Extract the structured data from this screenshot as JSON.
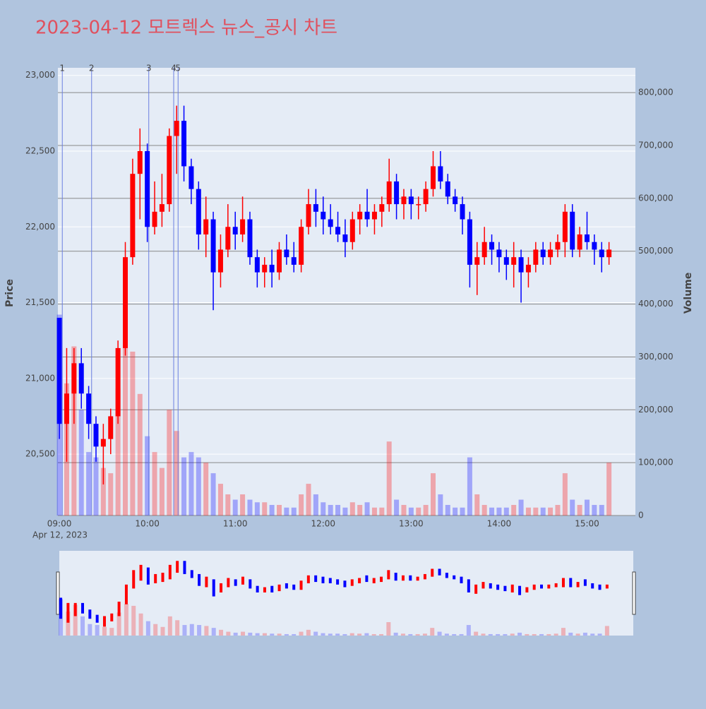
{
  "chart_data": {
    "type": "candlestick",
    "title": "2023-04-12 모트렉스 뉴스_공시 차트",
    "x_label": "Apr 12, 2023",
    "y_label": "Price",
    "y2_label": "Volume",
    "up_color": "#ff0000",
    "down_color": "#0000ff",
    "xlim": [
      "08:59",
      "15:33"
    ],
    "xticks": [
      "09:00",
      "10:00",
      "11:00",
      "12:00",
      "13:00",
      "14:00",
      "15:00"
    ],
    "ylim": [
      20095,
      23050
    ],
    "yticks": [
      {
        "value": 20500,
        "label": "20,500"
      },
      {
        "value": 21000,
        "label": "21,000"
      },
      {
        "value": 21500,
        "label": "21,500"
      },
      {
        "value": 22000,
        "label": "22,000"
      },
      {
        "value": 22500,
        "label": "22,500"
      },
      {
        "value": 23000,
        "label": "23,000"
      }
    ],
    "y2lim": [
      0,
      847000
    ],
    "y2ticks": [
      0,
      {
        "value": 100000,
        "label": "100,000"
      },
      {
        "value": 200000,
        "label": "200,000"
      },
      {
        "value": 300000,
        "label": "300,000"
      },
      {
        "value": 400000,
        "label": "400,000"
      },
      {
        "value": 500000,
        "label": "500,000"
      },
      {
        "value": 600000,
        "label": "600,000"
      },
      {
        "value": 700000,
        "label": "700,000"
      },
      {
        "value": 800000,
        "label": "800,000"
      }
    ],
    "markers": [
      {
        "label": "1",
        "x": "09:02"
      },
      {
        "label": "2",
        "x": "09:22"
      },
      {
        "label": "3",
        "x": "10:01"
      },
      {
        "label": "4",
        "x": "10:18"
      },
      {
        "label": "5",
        "x": "10:21"
      }
    ],
    "x": [
      "09:00",
      "09:05",
      "09:10",
      "09:15",
      "09:20",
      "09:25",
      "09:30",
      "09:35",
      "09:40",
      "09:45",
      "09:50",
      "09:55",
      "10:00",
      "10:05",
      "10:10",
      "10:15",
      "10:20",
      "10:25",
      "10:30",
      "10:35",
      "10:40",
      "10:45",
      "10:50",
      "10:55",
      "11:00",
      "11:05",
      "11:10",
      "11:15",
      "11:20",
      "11:25",
      "11:30",
      "11:35",
      "11:40",
      "11:45",
      "11:50",
      "11:55",
      "12:00",
      "12:05",
      "12:10",
      "12:15",
      "12:20",
      "12:25",
      "12:30",
      "12:35",
      "12:40",
      "12:45",
      "12:50",
      "12:55",
      "13:00",
      "13:05",
      "13:10",
      "13:15",
      "13:20",
      "13:25",
      "13:30",
      "13:35",
      "13:40",
      "13:45",
      "13:50",
      "13:55",
      "14:00",
      "14:05",
      "14:10",
      "14:15",
      "14:20",
      "14:25",
      "14:30",
      "14:35",
      "14:40",
      "14:45",
      "14:50",
      "14:55",
      "15:00",
      "15:05",
      "15:10",
      "15:15"
    ],
    "open": [
      21400,
      20700,
      20900,
      21100,
      20900,
      20700,
      20550,
      20600,
      20750,
      21200,
      21800,
      22350,
      22500,
      22000,
      22100,
      22150,
      22600,
      22700,
      22400,
      22250,
      21950,
      22050,
      21700,
      21850,
      22000,
      21950,
      22050,
      21800,
      21700,
      21750,
      21700,
      21850,
      21800,
      21750,
      22000,
      22150,
      22100,
      22050,
      22000,
      21950,
      21900,
      22050,
      22100,
      22050,
      22100,
      22150,
      22300,
      22150,
      22200,
      22150,
      22150,
      22250,
      22400,
      22300,
      22200,
      22150,
      22050,
      21750,
      21800,
      21900,
      21850,
      21800,
      21750,
      21800,
      21700,
      21750,
      21850,
      21800,
      21850,
      21900,
      22100,
      21850,
      21950,
      21900,
      21850,
      21800
    ],
    "high": [
      21400,
      21200,
      21200,
      21200,
      20950,
      20750,
      20700,
      20800,
      21250,
      21900,
      22450,
      22650,
      22550,
      22300,
      22350,
      22650,
      22800,
      22800,
      22450,
      22300,
      22200,
      22100,
      21950,
      22150,
      22100,
      22200,
      22100,
      21850,
      21800,
      21850,
      21900,
      21950,
      21900,
      22050,
      22250,
      22250,
      22200,
      22150,
      22100,
      22050,
      22100,
      22150,
      22250,
      22150,
      22200,
      22450,
      22350,
      22250,
      22250,
      22200,
      22300,
      22500,
      22500,
      22350,
      22250,
      22200,
      22100,
      21900,
      22000,
      21950,
      21900,
      21850,
      21900,
      21850,
      21800,
      21900,
      21900,
      21900,
      21950,
      22150,
      22150,
      22000,
      22100,
      21950,
      21900,
      21900
    ],
    "low": [
      20600,
      20450,
      20700,
      20800,
      20600,
      20450,
      20300,
      20500,
      20700,
      21150,
      21750,
      22050,
      21900,
      21950,
      22000,
      22100,
      22350,
      22300,
      22150,
      21850,
      21800,
      21450,
      21600,
      21800,
      21850,
      21900,
      21750,
      21600,
      21600,
      21600,
      21650,
      21750,
      21700,
      21700,
      21950,
      22000,
      21950,
      21950,
      21900,
      21800,
      21850,
      21950,
      22000,
      21950,
      22000,
      22100,
      22050,
      22050,
      22050,
      22050,
      22100,
      22200,
      22250,
      22150,
      22100,
      21950,
      21600,
      21550,
      21750,
      21750,
      21700,
      21650,
      21600,
      21500,
      21600,
      21700,
      21750,
      21750,
      21800,
      21800,
      21800,
      21800,
      21850,
      21750,
      21700,
      21750
    ],
    "close": [
      20700,
      20900,
      21100,
      20900,
      20700,
      20550,
      20600,
      20750,
      21200,
      21800,
      22350,
      22500,
      22000,
      22100,
      22150,
      22600,
      22700,
      22400,
      22250,
      21950,
      22050,
      21700,
      21850,
      22000,
      21950,
      22050,
      21800,
      21700,
      21750,
      21700,
      21850,
      21800,
      21750,
      22000,
      22150,
      22100,
      22050,
      22000,
      21950,
      21900,
      22050,
      22100,
      22050,
      22100,
      22150,
      22300,
      22150,
      22200,
      22150,
      22150,
      22250,
      22400,
      22300,
      22200,
      22150,
      22050,
      21750,
      21800,
      21900,
      21850,
      21800,
      21750,
      21800,
      21700,
      21750,
      21850,
      21800,
      21850,
      21900,
      22100,
      21850,
      21950,
      21900,
      21850,
      21800,
      21850
    ],
    "volume": [
      380000,
      250000,
      320000,
      200000,
      120000,
      110000,
      90000,
      80000,
      240000,
      330000,
      310000,
      230000,
      150000,
      120000,
      90000,
      200000,
      160000,
      110000,
      120000,
      110000,
      100000,
      80000,
      60000,
      40000,
      30000,
      40000,
      30000,
      25000,
      25000,
      20000,
      20000,
      15000,
      15000,
      40000,
      60000,
      40000,
      25000,
      20000,
      20000,
      15000,
      25000,
      20000,
      25000,
      15000,
      15000,
      140000,
      30000,
      20000,
      15000,
      15000,
      20000,
      80000,
      40000,
      20000,
      15000,
      15000,
      110000,
      40000,
      20000,
      15000,
      15000,
      15000,
      20000,
      30000,
      15000,
      15000,
      15000,
      15000,
      20000,
      80000,
      30000,
      20000,
      30000,
      20000,
      20000,
      100000
    ]
  }
}
